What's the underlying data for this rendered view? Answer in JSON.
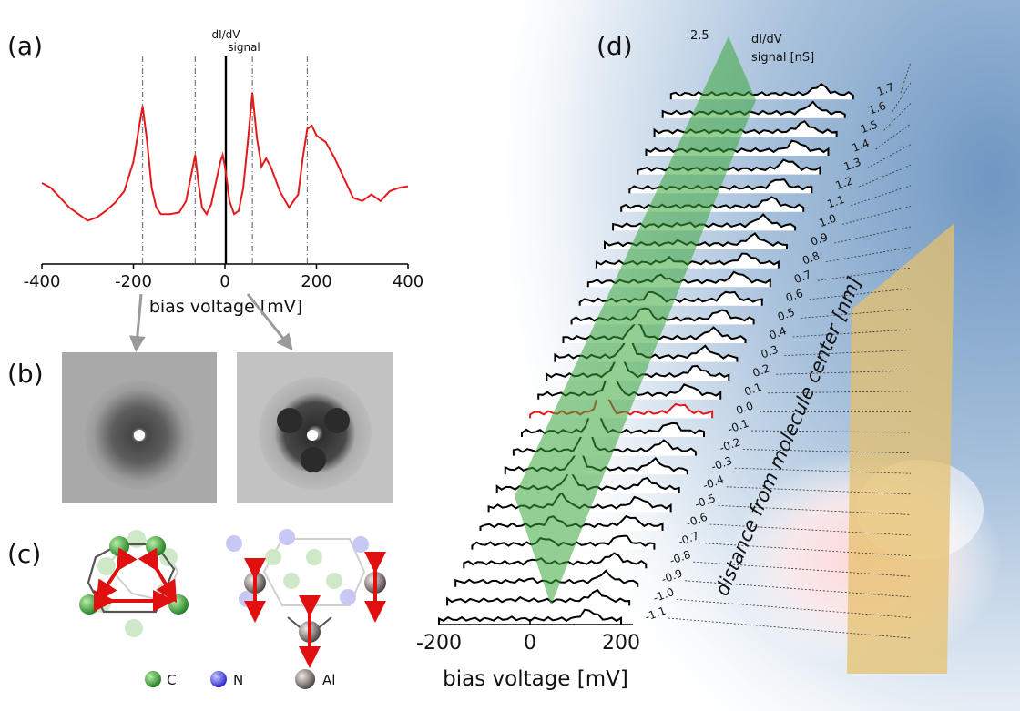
{
  "panel_labels": {
    "a": "(a)",
    "b": "(b)",
    "c": "(c)",
    "d": "(d)"
  },
  "chart_data": [
    {
      "type": "line",
      "title": "",
      "y_axis_label_line1": "dI/dV",
      "y_axis_label_line2": "signal",
      "xlabel": "bias voltage [mV]",
      "xlim": [
        -400,
        400
      ],
      "xticks": [
        "-400",
        "-200",
        "0",
        "200",
        "400"
      ],
      "reference_lines_mV": [
        -180,
        -65,
        0,
        60,
        180
      ],
      "series": [
        {
          "color": "#e31a1c",
          "x": [
            -400,
            -380,
            -360,
            -340,
            -320,
            -300,
            -280,
            -260,
            -240,
            -220,
            -200,
            -190,
            -180,
            -170,
            -160,
            -150,
            -140,
            -120,
            -100,
            -85,
            -75,
            -65,
            -58,
            -50,
            -40,
            -30,
            -20,
            -10,
            -5,
            0,
            5,
            10,
            20,
            30,
            40,
            50,
            60,
            70,
            80,
            90,
            100,
            120,
            140,
            160,
            170,
            180,
            190,
            200,
            220,
            240,
            260,
            280,
            300,
            320,
            340,
            360,
            380,
            400
          ],
          "y": [
            0.45,
            0.42,
            0.36,
            0.3,
            0.26,
            0.22,
            0.24,
            0.28,
            0.33,
            0.4,
            0.58,
            0.75,
            0.92,
            0.7,
            0.42,
            0.3,
            0.26,
            0.26,
            0.27,
            0.34,
            0.48,
            0.62,
            0.45,
            0.3,
            0.26,
            0.32,
            0.45,
            0.58,
            0.62,
            0.55,
            0.45,
            0.34,
            0.26,
            0.28,
            0.42,
            0.7,
            1.0,
            0.72,
            0.55,
            0.6,
            0.55,
            0.4,
            0.3,
            0.38,
            0.6,
            0.78,
            0.8,
            0.74,
            0.7,
            0.6,
            0.48,
            0.36,
            0.34,
            0.38,
            0.34,
            0.4,
            0.42,
            0.43
          ]
        }
      ]
    },
    {
      "type": "line",
      "title": "",
      "z_axis_max": "2.5",
      "z_axis_label_line1": "dI/dV",
      "z_axis_label_line2": "signal [nS]",
      "xlabel": "bias voltage [mV]",
      "xticks": [
        "-200",
        "0",
        "200"
      ],
      "ylabel": "distance from molecule center [nm]",
      "distances_nm": [
        "1.7",
        "1.6",
        "1.5",
        "1.4",
        "1.3",
        "1.2",
        "1.1",
        "1.0",
        "0.9",
        "0.8",
        "0.7",
        "0.6",
        "0.5",
        "0.4",
        "0.3",
        "0.2",
        "0.1",
        "0.0",
        "-0.1",
        "-0.2",
        "-0.3",
        "-0.4",
        "-0.5",
        "-0.6",
        "-0.7",
        "-0.8",
        "-0.9",
        "-1.0",
        "-1.1"
      ],
      "highlight_distance_nm": "0.0"
    }
  ],
  "legend": [
    {
      "label": "C",
      "color": "#2e8b2e"
    },
    {
      "label": "N",
      "color": "#3a3ad6"
    },
    {
      "label": "Al",
      "color": "#8a7e7c"
    }
  ]
}
